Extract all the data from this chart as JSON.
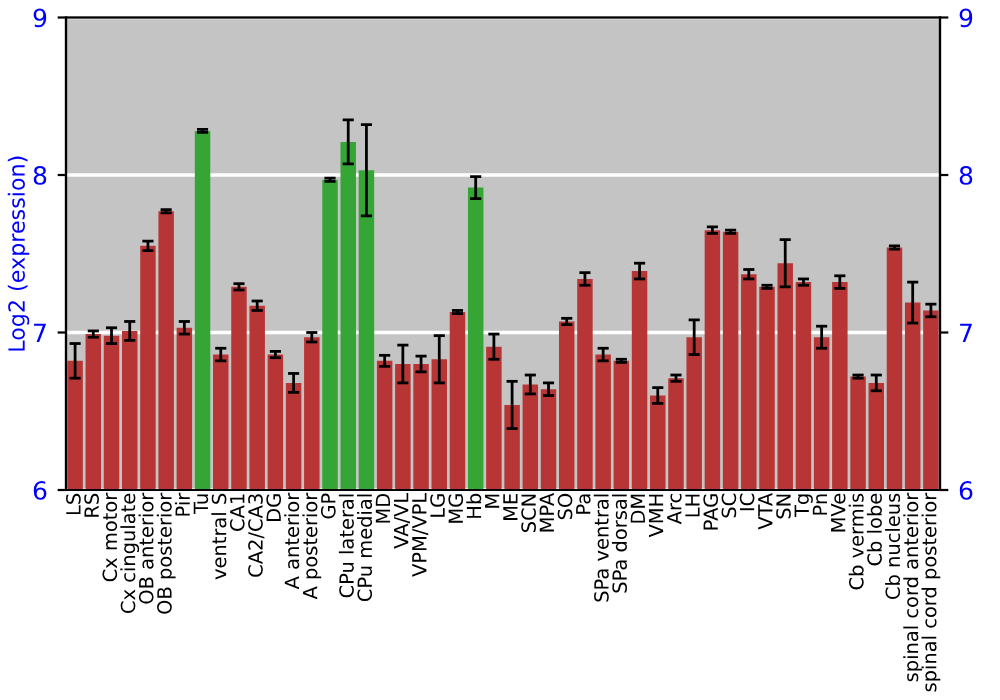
{
  "chart_data": {
    "type": "bar",
    "ylabel": "Log2 (expression)",
    "categories": [
      "LS",
      "RS",
      "Cx motor",
      "Cx cingulate",
      "OB anterior",
      "OB posterior",
      "Pir",
      "Tu",
      "ventral S",
      "CA1",
      "CA2/CA3",
      "DG",
      "A anterior",
      "A posterior",
      "GP",
      "CPu lateral",
      "CPu medial",
      "MD",
      "VA/VL",
      "VPM/VPL",
      "LG",
      "MG",
      "Hb",
      "M",
      "ME",
      "SCN",
      "MPA",
      "SO",
      "Pa",
      "SPa ventral",
      "SPa dorsal",
      "DM",
      "VMH",
      "Arc",
      "LH",
      "PAG",
      "SC",
      "IC",
      "VTA",
      "SN",
      "Tg",
      "Pn",
      "MVe",
      "Cb vermis",
      "Cb lobe",
      "Cb nucleus",
      "spinal cord anterior",
      "spinal cord posterior"
    ],
    "values": [
      6.82,
      6.99,
      6.98,
      7.01,
      7.55,
      7.77,
      7.03,
      8.28,
      6.86,
      7.29,
      7.17,
      6.86,
      6.68,
      6.97,
      7.97,
      8.21,
      8.03,
      6.82,
      6.8,
      6.8,
      6.83,
      7.13,
      7.92,
      6.91,
      6.54,
      6.67,
      6.64,
      7.07,
      7.34,
      6.86,
      6.82,
      7.39,
      6.6,
      6.71,
      6.97,
      7.65,
      7.64,
      7.37,
      7.29,
      7.44,
      7.32,
      6.97,
      7.32,
      6.72,
      6.68,
      7.54,
      7.19,
      7.14
    ],
    "errors": [
      0.11,
      0.02,
      0.05,
      0.06,
      0.03,
      0.01,
      0.04,
      0.01,
      0.04,
      0.02,
      0.03,
      0.02,
      0.06,
      0.03,
      0.01,
      0.14,
      0.29,
      0.035,
      0.12,
      0.05,
      0.15,
      0.01,
      0.07,
      0.08,
      0.15,
      0.06,
      0.04,
      0.02,
      0.04,
      0.04,
      0.01,
      0.05,
      0.05,
      0.02,
      0.11,
      0.02,
      0.01,
      0.03,
      0.01,
      0.15,
      0.02,
      0.07,
      0.04,
      0.01,
      0.05,
      0.01,
      0.13,
      0.04
    ],
    "colors": [
      "#b83535",
      "#b83535",
      "#b83535",
      "#b83535",
      "#b83535",
      "#b83535",
      "#b83535",
      "#35a535",
      "#b83535",
      "#b83535",
      "#b83535",
      "#b83535",
      "#b83535",
      "#b83535",
      "#35a535",
      "#35a535",
      "#35a535",
      "#b83535",
      "#b83535",
      "#b83535",
      "#b83535",
      "#b83535",
      "#35a535",
      "#b83535",
      "#b83535",
      "#b83535",
      "#b83535",
      "#b83535",
      "#b83535",
      "#b83535",
      "#b83535",
      "#b83535",
      "#b83535",
      "#b83535",
      "#b83535",
      "#b83535",
      "#b83535",
      "#b83535",
      "#b83535",
      "#b83535",
      "#b83535",
      "#b83535",
      "#b83535",
      "#b83535",
      "#b83535",
      "#b83535",
      "#b83535",
      "#b83535"
    ],
    "ylim": [
      6,
      9
    ],
    "yticks": [
      6,
      7,
      8,
      9
    ],
    "y2lim": [
      6,
      9
    ],
    "y2ticks": [
      6,
      7,
      8,
      9
    ],
    "grid": "y"
  }
}
